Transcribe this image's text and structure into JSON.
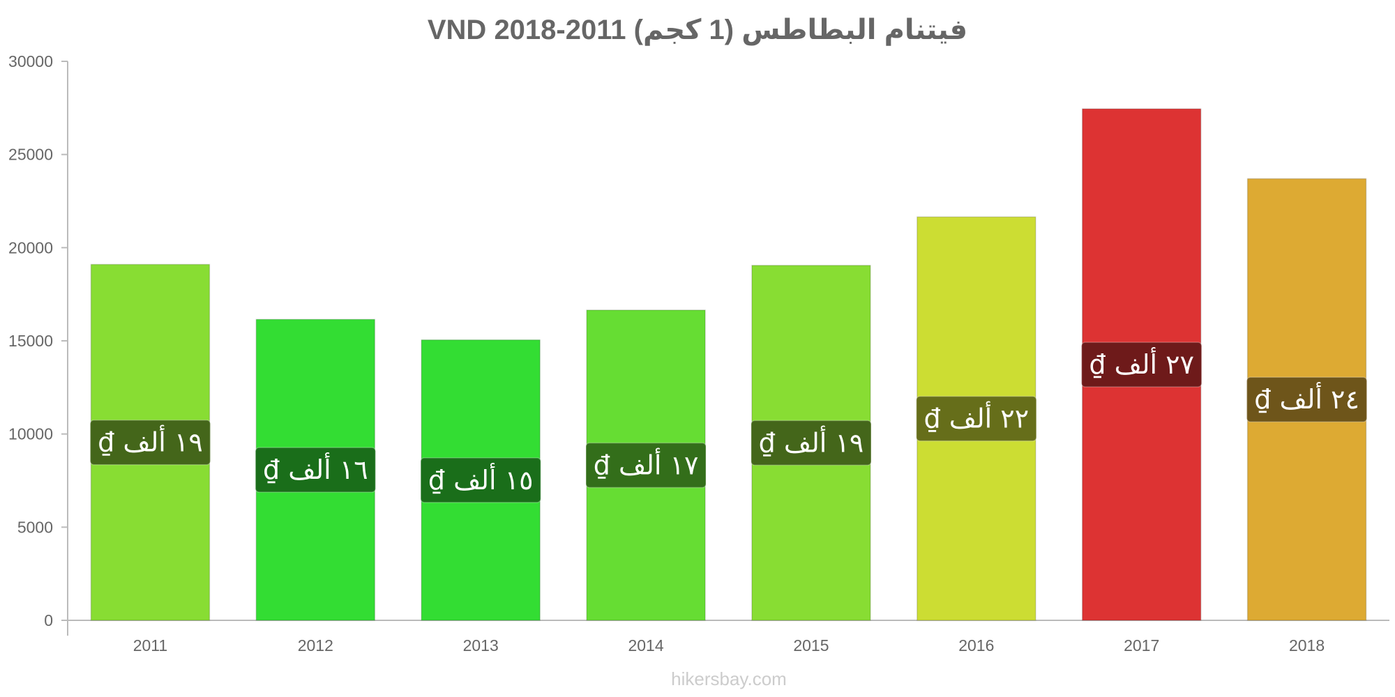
{
  "chart_data": {
    "type": "bar",
    "title": "فيتنام البطاطس (1 كجم) 2011-2018 VND",
    "categories": [
      "2011",
      "2012",
      "2013",
      "2014",
      "2015",
      "2016",
      "2017",
      "2018"
    ],
    "values": [
      19100,
      16150,
      15050,
      16650,
      19050,
      21650,
      27450,
      23700
    ],
    "data_labels": [
      "١٩ ألف ₫",
      "١٦ ألف ₫",
      "١٥ ألف ₫",
      "١٧ ألف ₫",
      "١٩ ألف ₫",
      "٢٢ ألف ₫",
      "٢٧ ألف ₫",
      "٢٤ ألف ₫"
    ],
    "bar_colors": [
      "#88dd33",
      "#33dd33",
      "#33dd33",
      "#66dd33",
      "#88dd33",
      "#ccdd33",
      "#dd3333",
      "#ddaa33"
    ],
    "label_bg_colors": [
      "#44661a",
      "#1a6e1a",
      "#1a6e1a",
      "#336e1a",
      "#44661a",
      "#666e1a",
      "#6e1a1a",
      "#6e551a"
    ],
    "ylim": [
      0,
      30000
    ],
    "yticks": [
      "0",
      "5000",
      "10000",
      "15000",
      "20000",
      "25000",
      "30000"
    ],
    "ytick_values": [
      0,
      5000,
      10000,
      15000,
      20000,
      25000,
      30000
    ],
    "xlabel": "",
    "ylabel": "",
    "grid": false,
    "legend": "none"
  },
  "footer": {
    "source": "hikersbay.com"
  }
}
